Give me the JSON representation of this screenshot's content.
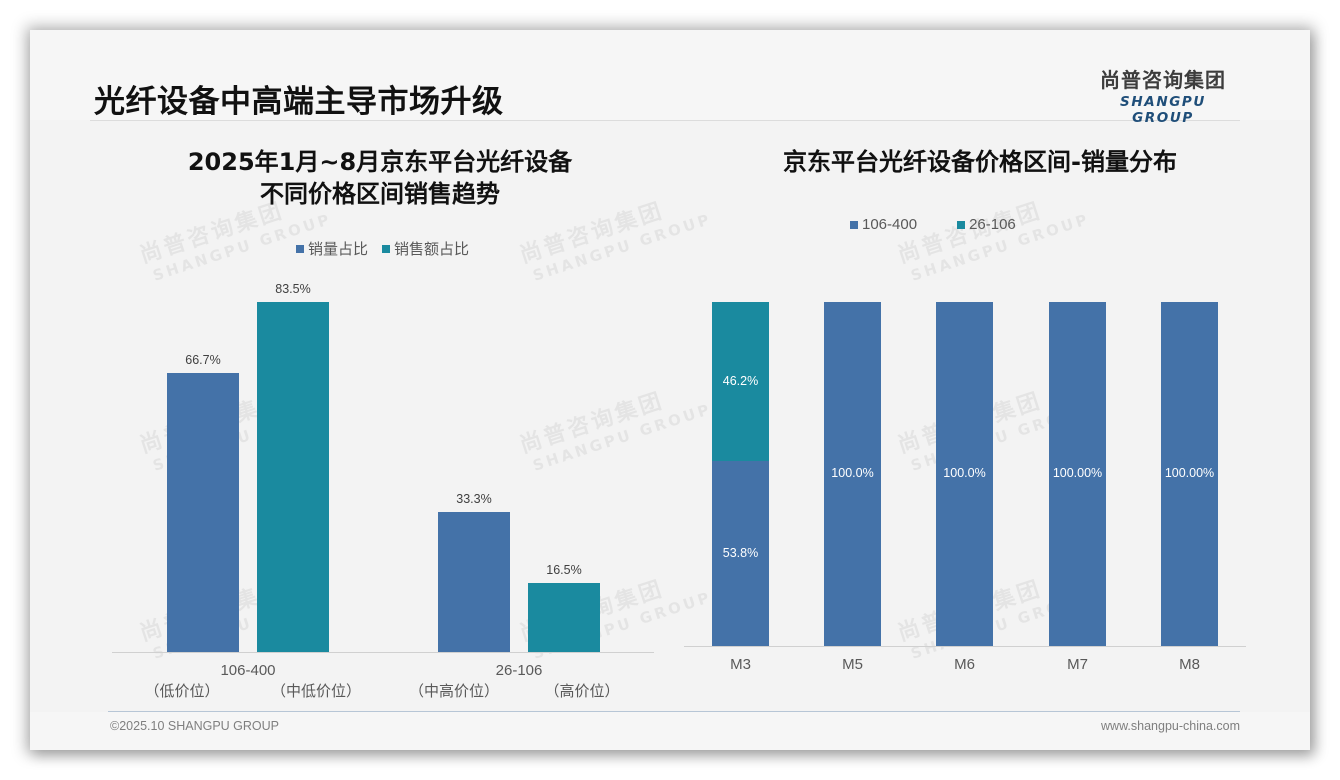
{
  "header": {
    "title": "光纤设备中高端主导市场升级",
    "logo_cn": "尚普咨询集团",
    "logo_en": "SHANGPU GROUP"
  },
  "watermark": {
    "cn": "尚普咨询集团",
    "en": "SHANGPU GROUP"
  },
  "colors": {
    "blue": "#4472a8",
    "teal": "#1a8a9f",
    "background": "#f3f3f3"
  },
  "left_chart": {
    "title_line1": "2025年1月~8月京东平台光纤设备",
    "title_line2": "不同价格区间销售趋势",
    "legend": [
      {
        "label": "销量占比",
        "color": "#4472a8"
      },
      {
        "label": "销售额占比",
        "color": "#1a8a9f"
      }
    ],
    "groups": [
      {
        "category": "106-400",
        "bars": [
          {
            "value": 66.7,
            "label": "66.7%",
            "sub_label": "（低价位）"
          },
          {
            "value": 83.5,
            "label": "83.5%",
            "sub_label": "（中低价位）"
          }
        ]
      },
      {
        "category": "26-106",
        "bars": [
          {
            "value": 33.3,
            "label": "33.3%",
            "sub_label": "（中高价位）"
          },
          {
            "value": 16.5,
            "label": "16.5%",
            "sub_label": "（高价位）"
          }
        ]
      }
    ]
  },
  "right_chart": {
    "title": "京东平台光纤设备价格区间-销量分布",
    "legend": [
      {
        "label": "106-400",
        "color": "#4472a8"
      },
      {
        "label": "26-106",
        "color": "#1a8a9f"
      }
    ],
    "bars": [
      {
        "category": "M3",
        "segments": [
          {
            "series": "106-400",
            "value": 53.8,
            "label": "53.8%"
          },
          {
            "series": "26-106",
            "value": 46.2,
            "label": "46.2%"
          }
        ]
      },
      {
        "category": "M5",
        "segments": [
          {
            "series": "106-400",
            "value": 100.0,
            "label": "100.0%"
          }
        ]
      },
      {
        "category": "M6",
        "segments": [
          {
            "series": "106-400",
            "value": 100.0,
            "label": "100.0%"
          }
        ]
      },
      {
        "category": "M7",
        "segments": [
          {
            "series": "106-400",
            "value": 100.0,
            "label": "100.00%"
          }
        ]
      },
      {
        "category": "M8",
        "segments": [
          {
            "series": "106-400",
            "value": 100.0,
            "label": "100.00%"
          }
        ]
      }
    ]
  },
  "footer": {
    "copyright": "©2025.10 SHANGPU GROUP",
    "website": "www.shangpu-china.com"
  },
  "chart_data": [
    {
      "type": "bar",
      "title": "2025年1月~8月京东平台光纤设备不同价格区间销售趋势",
      "categories": [
        "106-400",
        "26-106"
      ],
      "series": [
        {
          "name": "销量占比",
          "values": [
            66.7,
            33.3
          ]
        },
        {
          "name": "销售额占比",
          "values": [
            83.5,
            16.5
          ]
        }
      ],
      "sub_labels": [
        [
          "（低价位）",
          "（中低价位）"
        ],
        [
          "（中高价位）",
          "（高价位）"
        ]
      ],
      "xlabel": "",
      "ylabel": "",
      "unit": "%",
      "grid": false,
      "legend_position": "top"
    },
    {
      "type": "bar",
      "stacked": true,
      "title": "京东平台光纤设备价格区间-销量分布",
      "categories": [
        "M3",
        "M5",
        "M6",
        "M7",
        "M8"
      ],
      "series": [
        {
          "name": "106-400",
          "values": [
            53.8,
            100.0,
            100.0,
            100.0,
            100.0
          ]
        },
        {
          "name": "26-106",
          "values": [
            46.2,
            0,
            0,
            0,
            0
          ]
        }
      ],
      "xlabel": "",
      "ylabel": "",
      "unit": "%",
      "ylim": [
        0,
        100
      ],
      "grid": false,
      "legend_position": "top"
    }
  ]
}
